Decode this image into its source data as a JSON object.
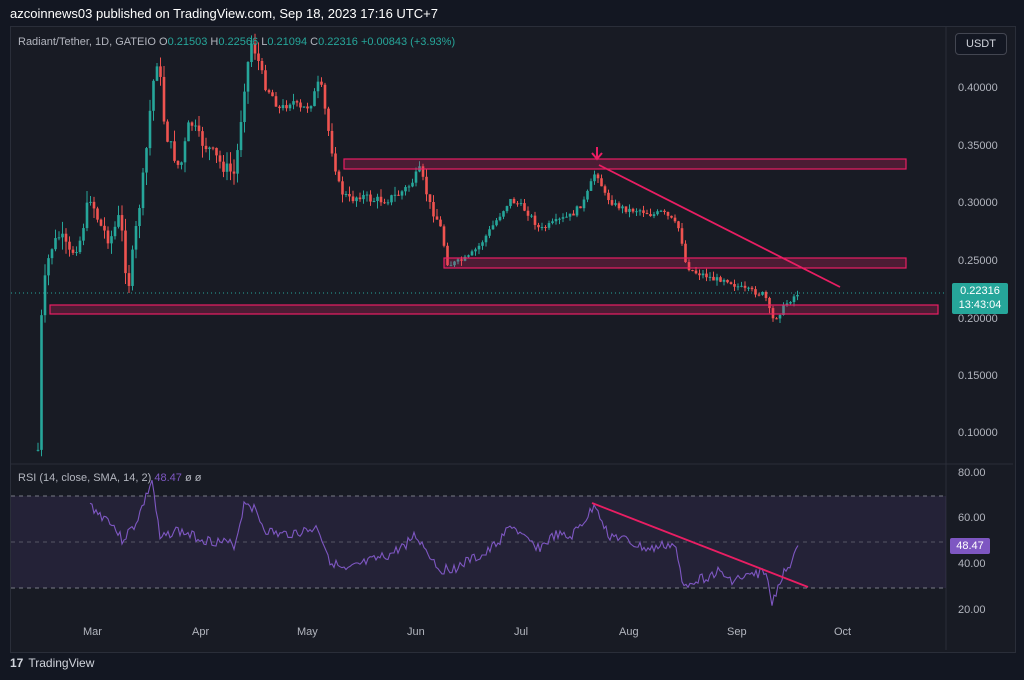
{
  "header": {
    "publisher": "azcoinnews03 published on TradingView.com, Sep 18, 2023 17:16 UTC+7"
  },
  "legend": {
    "symbol": "Radiant/Tether, 1D, GATEIO",
    "o_label": "O",
    "o": "0.21503",
    "h_label": "H",
    "h": "0.22566",
    "l_label": "L",
    "l": "0.21094",
    "c_label": "C",
    "c": "0.22316",
    "change": "+0.00843 (+3.93%)"
  },
  "currency_button": "USDT",
  "last_price": {
    "value": "0.22316",
    "countdown": "13:43:04"
  },
  "price_axis": [
    "0.40000",
    "0.35000",
    "0.30000",
    "0.25000",
    "0.20000",
    "0.15000",
    "0.10000"
  ],
  "rsi": {
    "legend": "RSI (14, close, SMA, 14, 2)",
    "value": "48.47",
    "extra1": "ø",
    "extra2": "ø",
    "axis": [
      "80.00",
      "60.00",
      "40.00",
      "20.00"
    ],
    "current": "48.47"
  },
  "time_axis": [
    "Mar",
    "Apr",
    "May",
    "Jun",
    "Jul",
    "Aug",
    "Sep",
    "Oct"
  ],
  "footer": {
    "brand": "TradingView",
    "logo": "17"
  },
  "colors": {
    "up": "#26a69a",
    "down": "#ef5350",
    "zone": "#e91e63",
    "rsi": "#7e57c2",
    "bg": "#131722"
  }
}
